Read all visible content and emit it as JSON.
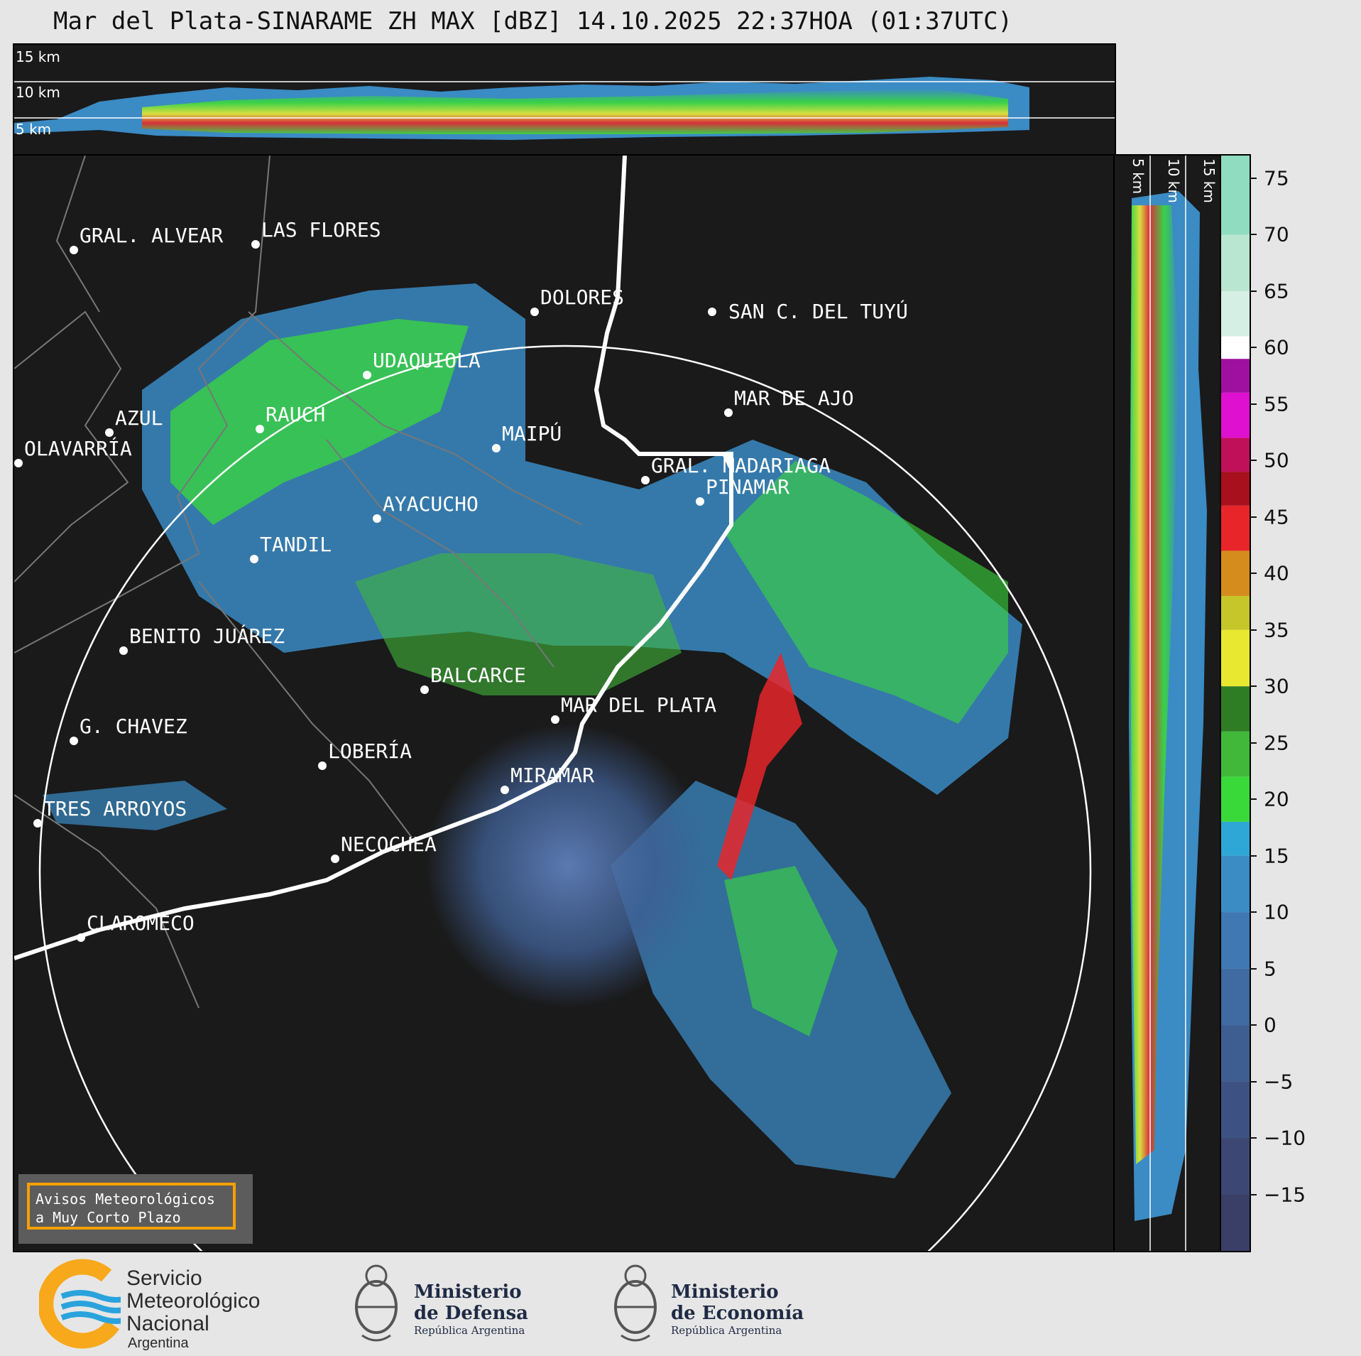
{
  "title": "Mar del Plata-SINARAME ZH MAX [dBZ] 14.10.2025 22:37HOA (01:37UTC)",
  "top_panel": {
    "km_labels": [
      "15 km",
      "10 km",
      "5 km"
    ]
  },
  "right_panel": {
    "km_labels": [
      "5 km",
      "10 km",
      "15 km"
    ]
  },
  "cities": [
    {
      "name": "GRAL. ALVEAR"
    },
    {
      "name": "LAS FLORES"
    },
    {
      "name": "DOLORES"
    },
    {
      "name": "SAN C. DEL TUYÚ"
    },
    {
      "name": "UDAQUIOLA"
    },
    {
      "name": "AZUL"
    },
    {
      "name": "RAUCH"
    },
    {
      "name": "MAR DE AJO"
    },
    {
      "name": "OLAVARRÍA"
    },
    {
      "name": "MAIPÚ"
    },
    {
      "name": "GRAL. MADARIAGA"
    },
    {
      "name": "PINAMAR"
    },
    {
      "name": "AYACUCHO"
    },
    {
      "name": "TANDIL"
    },
    {
      "name": "BENITO JUÁREZ"
    },
    {
      "name": "BALCARCE"
    },
    {
      "name": "MAR DEL PLATA"
    },
    {
      "name": "G. CHAVEZ"
    },
    {
      "name": "LOBERÍA"
    },
    {
      "name": "MIRAMAR"
    },
    {
      "name": "TRES ARROYOS"
    },
    {
      "name": "NECOCHEA"
    },
    {
      "name": "CLAROMECO"
    }
  ],
  "colorbar": {
    "unit": "dBZ",
    "range": [
      -20,
      77
    ],
    "ticks": [
      "75",
      "70",
      "65",
      "60",
      "55",
      "50",
      "45",
      "40",
      "35",
      "30",
      "25",
      "20",
      "15",
      "10",
      "5",
      "0",
      "−5",
      "−10",
      "−15"
    ],
    "tick_values": [
      75,
      70,
      65,
      60,
      55,
      50,
      45,
      40,
      35,
      30,
      25,
      20,
      15,
      10,
      5,
      0,
      -5,
      -10,
      -15
    ],
    "bands": [
      {
        "from": -20,
        "to": -15,
        "color": "#3a3f68"
      },
      {
        "from": -15,
        "to": -10,
        "color": "#3c4773"
      },
      {
        "from": -10,
        "to": -5,
        "color": "#3d5282"
      },
      {
        "from": -5,
        "to": 0,
        "color": "#3e5e92"
      },
      {
        "from": 0,
        "to": 5,
        "color": "#3f6aa2"
      },
      {
        "from": 5,
        "to": 10,
        "color": "#3f78b2"
      },
      {
        "from": 10,
        "to": 15,
        "color": "#3b8bc4"
      },
      {
        "from": 15,
        "to": 18,
        "color": "#2fa7d6"
      },
      {
        "from": 18,
        "to": 22,
        "color": "#3ad93a"
      },
      {
        "from": 22,
        "to": 26,
        "color": "#41b83a"
      },
      {
        "from": 26,
        "to": 30,
        "color": "#2e7d25"
      },
      {
        "from": 30,
        "to": 35,
        "color": "#e8e830"
      },
      {
        "from": 35,
        "to": 38,
        "color": "#c6c62a"
      },
      {
        "from": 38,
        "to": 42,
        "color": "#d68c1c"
      },
      {
        "from": 42,
        "to": 46,
        "color": "#e8262a"
      },
      {
        "from": 46,
        "to": 49,
        "color": "#a8101e"
      },
      {
        "from": 49,
        "to": 52,
        "color": "#c0105a"
      },
      {
        "from": 52,
        "to": 56,
        "color": "#e010d0"
      },
      {
        "from": 56,
        "to": 59,
        "color": "#a010a0"
      },
      {
        "from": 59,
        "to": 61,
        "color": "#ffffff"
      },
      {
        "from": 61,
        "to": 65,
        "color": "#d6efe4"
      },
      {
        "from": 65,
        "to": 70,
        "color": "#b8e6d0"
      },
      {
        "from": 70,
        "to": 77,
        "color": "#90dcc0"
      }
    ]
  },
  "warning_box": {
    "line1": "Avisos Meteorológicos",
    "line2": "a Muy Corto Plazo"
  },
  "logos": {
    "smn": {
      "line1": "Servicio",
      "line2": "Meteorológico",
      "line3": "Nacional",
      "line4": "Argentina"
    },
    "defensa": {
      "line1": "Ministerio",
      "line2": "de Defensa",
      "line3": "República Argentina"
    },
    "economia": {
      "line1": "Ministerio",
      "line2": "de Economía",
      "line3": "República Argentina"
    }
  },
  "colors": {
    "background": "#e6e6e6",
    "panel": "#1a1a1a",
    "warning_border": "#f5a000",
    "smn_blue": "#2aa3dd",
    "smn_orange": "#f7a81b"
  }
}
